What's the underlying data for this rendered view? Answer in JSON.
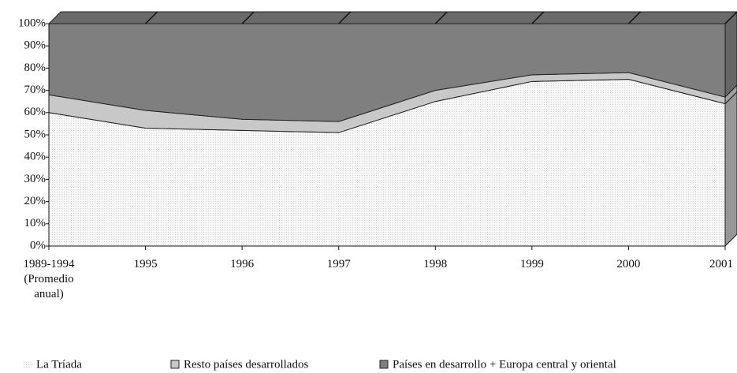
{
  "chart_data": {
    "type": "stacked_area",
    "categories": [
      "1989-1994 (Promedio anual)",
      "1995",
      "1996",
      "1997",
      "1998",
      "1999",
      "2000",
      "2001"
    ],
    "series": [
      {
        "name": "La Tríada",
        "color": "#efefef",
        "values": [
          60,
          53,
          52,
          51,
          65,
          74,
          75,
          64
        ]
      },
      {
        "name": "Resto países desarrollados",
        "color": "#c8c8c8",
        "values": [
          8,
          8,
          5,
          5,
          5,
          3,
          3,
          3
        ]
      },
      {
        "name": "Países  en desarrollo + Europa central y oriental",
        "color": "#7f7f7f",
        "values": [
          32,
          39,
          43,
          44,
          30,
          23,
          22,
          33
        ]
      }
    ],
    "ylim": [
      0,
      100
    ],
    "yticks": [
      {
        "value": 0,
        "label": "0%"
      },
      {
        "value": 10,
        "label": "10%"
      },
      {
        "value": 20,
        "label": "20%"
      },
      {
        "value": 30,
        "label": "30%"
      },
      {
        "value": 40,
        "label": "40%"
      },
      {
        "value": 50,
        "label": "50%"
      },
      {
        "value": 60,
        "label": "60%"
      },
      {
        "value": 70,
        "label": "70%"
      },
      {
        "value": 80,
        "label": "80%"
      },
      {
        "value": 90,
        "label": "90%"
      },
      {
        "value": 100,
        "label": "100%"
      }
    ]
  }
}
